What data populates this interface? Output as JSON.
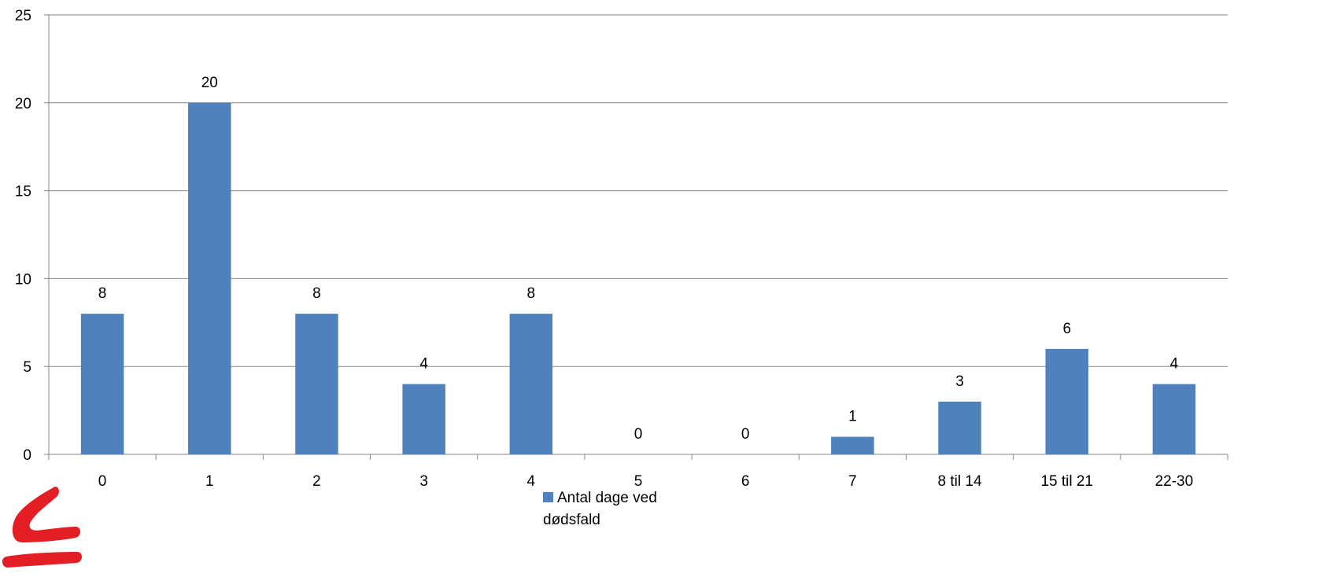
{
  "colors": {
    "bar": "#4F81BD",
    "grid": "#868686",
    "axis": "#868686",
    "logo": "#E31E24"
  },
  "logo_icon": "red-logo-mark",
  "chart_data": {
    "type": "bar",
    "title": "",
    "xlabel": "",
    "ylabel": "",
    "categories": [
      "0",
      "1",
      "2",
      "3",
      "4",
      "5",
      "6",
      "7",
      "8 til 14",
      "15 til 21",
      "22-30"
    ],
    "series": [
      {
        "name": "Antal dage ved dødsfald",
        "values": [
          8,
          20,
          8,
          4,
          8,
          0,
          0,
          1,
          3,
          6,
          4
        ]
      }
    ],
    "data_labels": true,
    "ylim": [
      0,
      25
    ],
    "yticks": [
      0,
      5,
      10,
      15,
      20,
      25
    ],
    "grid": true,
    "legend": "bottom"
  }
}
